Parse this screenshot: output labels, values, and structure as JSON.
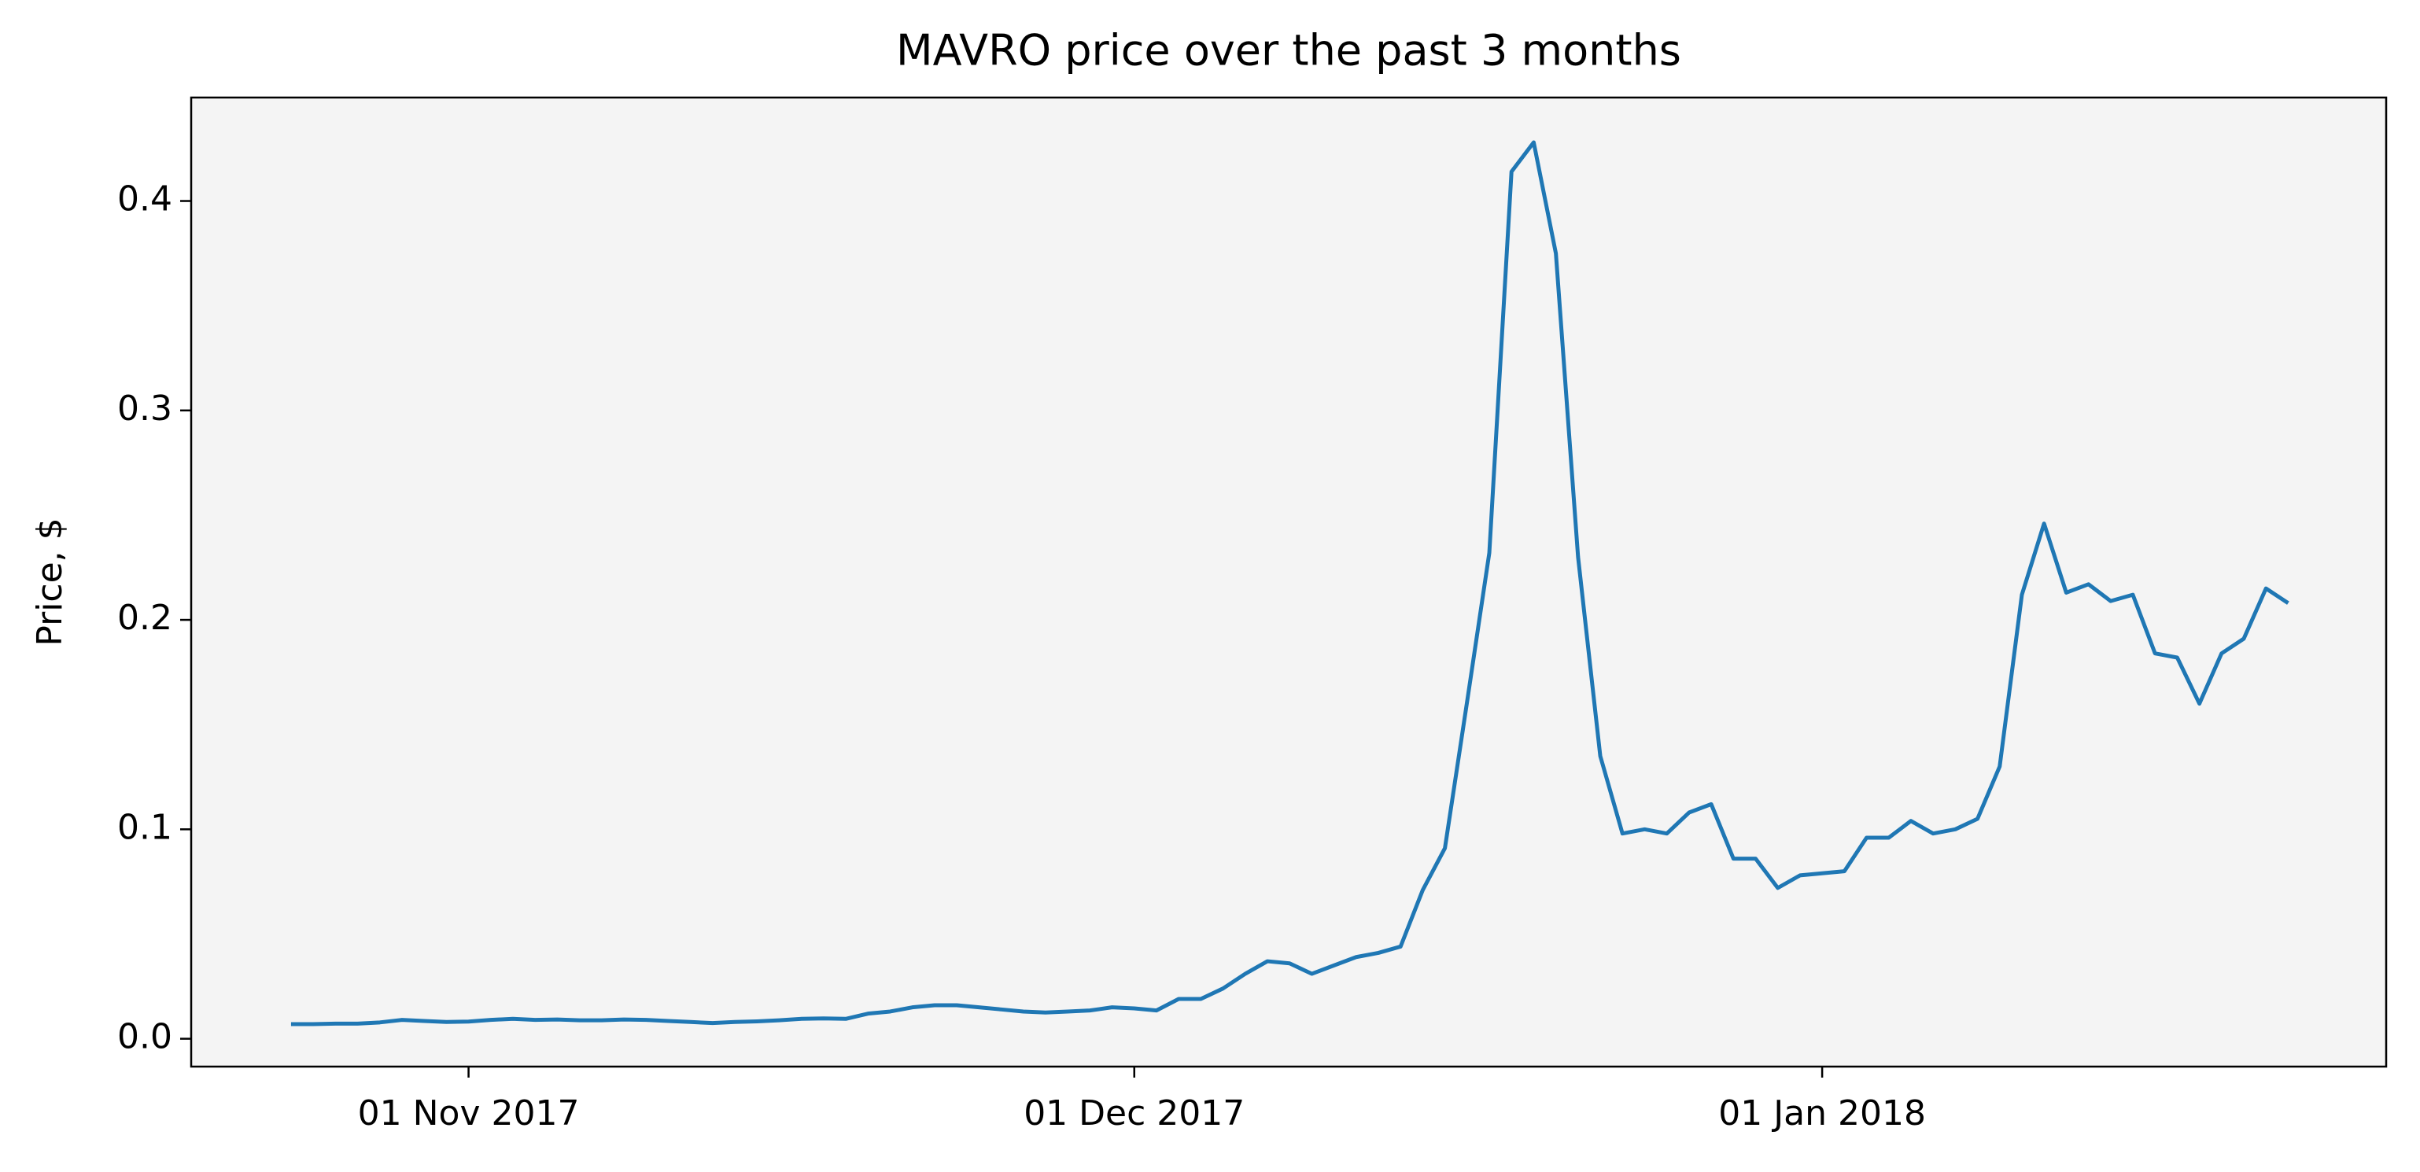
{
  "chart_data": {
    "type": "line",
    "title": "MAVRO price over the past 3 months",
    "y_label": "Price, $",
    "x": [
      "2017-10-24",
      "2017-10-25",
      "2017-10-26",
      "2017-10-27",
      "2017-10-28",
      "2017-10-29",
      "2017-10-30",
      "2017-10-31",
      "2017-11-01",
      "2017-11-02",
      "2017-11-03",
      "2017-11-04",
      "2017-11-05",
      "2017-11-06",
      "2017-11-07",
      "2017-11-08",
      "2017-11-09",
      "2017-11-10",
      "2017-11-11",
      "2017-11-12",
      "2017-11-13",
      "2017-11-14",
      "2017-11-15",
      "2017-11-16",
      "2017-11-17",
      "2017-11-18",
      "2017-11-19",
      "2017-11-20",
      "2017-11-21",
      "2017-11-22",
      "2017-11-23",
      "2017-11-24",
      "2017-11-25",
      "2017-11-26",
      "2017-11-27",
      "2017-11-28",
      "2017-11-29",
      "2017-11-30",
      "2017-12-01",
      "2017-12-02",
      "2017-12-03",
      "2017-12-04",
      "2017-12-05",
      "2017-12-06",
      "2017-12-07",
      "2017-12-08",
      "2017-12-09",
      "2017-12-10",
      "2017-12-11",
      "2017-12-12",
      "2017-12-13",
      "2017-12-14",
      "2017-12-15",
      "2017-12-16",
      "2017-12-17",
      "2017-12-18",
      "2017-12-19",
      "2017-12-20",
      "2017-12-21",
      "2017-12-22",
      "2017-12-23",
      "2017-12-24",
      "2017-12-25",
      "2017-12-26",
      "2017-12-27",
      "2017-12-28",
      "2017-12-29",
      "2017-12-30",
      "2017-12-31",
      "2018-01-01",
      "2018-01-02",
      "2018-01-03",
      "2018-01-04",
      "2018-01-05",
      "2018-01-06",
      "2018-01-07",
      "2018-01-08",
      "2018-01-09",
      "2018-01-10",
      "2018-01-11",
      "2018-01-12",
      "2018-01-13",
      "2018-01-14",
      "2018-01-15",
      "2018-01-16",
      "2018-01-17",
      "2018-01-18",
      "2018-01-19",
      "2018-01-20",
      "2018-01-21",
      "2018-01-22"
    ],
    "series": [
      {
        "color": "#1f77b4",
        "values": [
          0.007,
          0.007,
          0.0072,
          0.0072,
          0.0078,
          0.009,
          0.0085,
          0.008,
          0.0082,
          0.009,
          0.0095,
          0.009,
          0.0092,
          0.0088,
          0.0088,
          0.0092,
          0.009,
          0.0085,
          0.008,
          0.0075,
          0.008,
          0.0083,
          0.0088,
          0.0095,
          0.0097,
          0.0095,
          0.012,
          0.013,
          0.015,
          0.016,
          0.016,
          0.015,
          0.014,
          0.013,
          0.0125,
          0.013,
          0.0135,
          0.015,
          0.0145,
          0.0135,
          0.019,
          0.019,
          0.024,
          0.031,
          0.037,
          0.036,
          0.031,
          0.035,
          0.039,
          0.041,
          0.044,
          0.071,
          0.091,
          0.161,
          0.232,
          0.414,
          0.428,
          0.375,
          0.23,
          0.135,
          0.098,
          0.1,
          0.098,
          0.108,
          0.112,
          0.086,
          0.086,
          0.072,
          0.078,
          0.079,
          0.08,
          0.096,
          0.096,
          0.104,
          0.098,
          0.1,
          0.105,
          0.13,
          0.212,
          0.246,
          0.213,
          0.217,
          0.209,
          0.212,
          0.184,
          0.182,
          0.16,
          0.184,
          0.191,
          0.215,
          0.208
        ]
      }
    ],
    "xlim": [
      "2017-10-19T12:00:00Z",
      "2018-01-26T10:00:00Z"
    ],
    "xticks": [
      {
        "value": "2017-11-01",
        "label": "01 Nov 2017"
      },
      {
        "value": "2017-12-01",
        "label": "01 Dec 2017"
      },
      {
        "value": "2018-01-01",
        "label": "01 Jan 2018"
      }
    ],
    "ylim": [
      -0.0133,
      0.4494
    ],
    "yticks": [
      {
        "value": 0,
        "label": "0.0"
      },
      0.1,
      0.2,
      0.3,
      0.4
    ],
    "background": "#f4f4f4"
  }
}
